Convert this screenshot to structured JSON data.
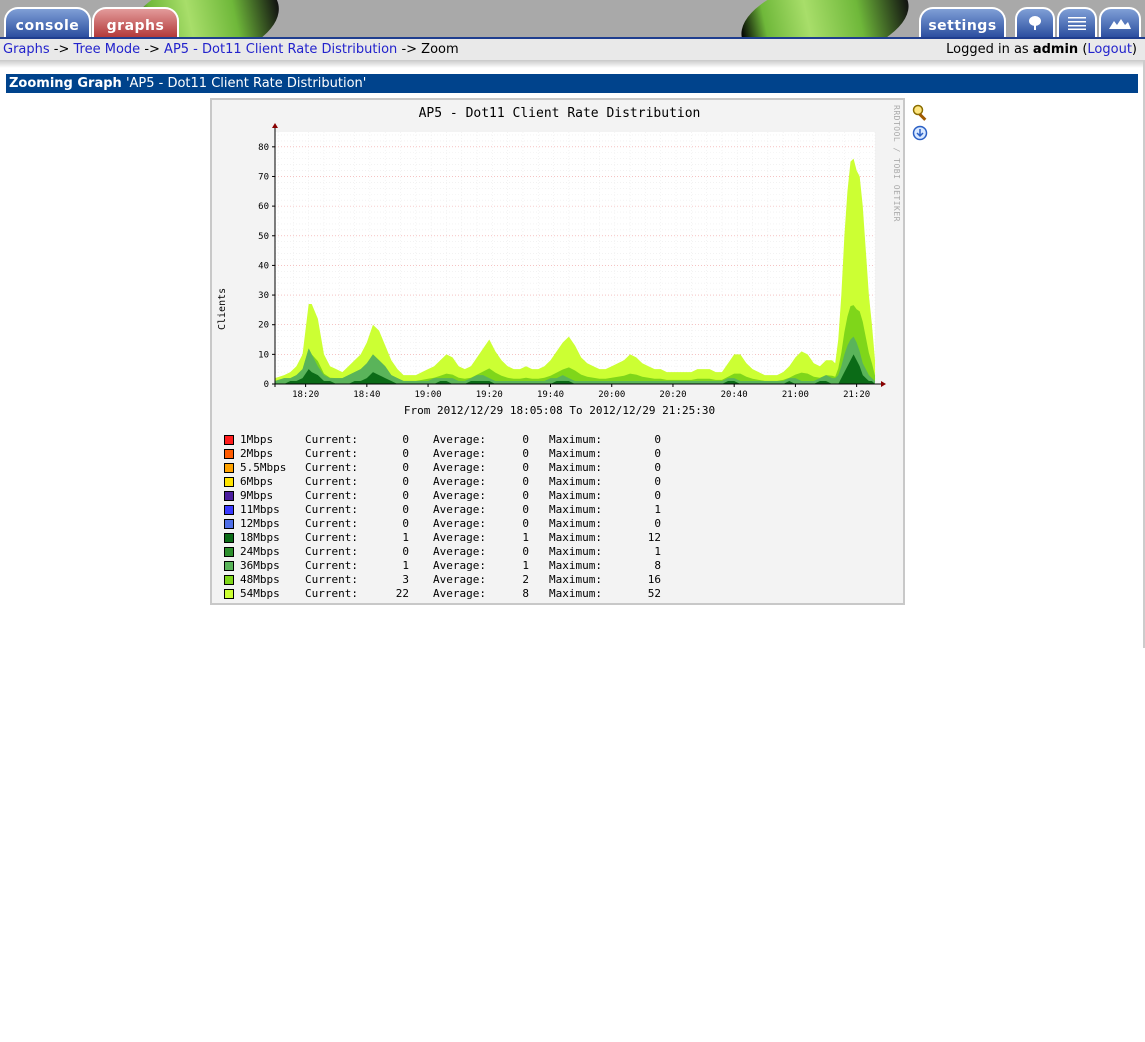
{
  "tabs": {
    "console": "console",
    "graphs": "graphs",
    "settings": "settings"
  },
  "icon_tabs": [
    "tree-icon",
    "list-icon",
    "preview-icon"
  ],
  "breadcrumb": {
    "items": [
      "Graphs",
      "Tree Mode",
      "AP5 - Dot11 Client Rate Distribution"
    ],
    "separator": "->",
    "current": "Zoom"
  },
  "login": {
    "prefix": "Logged in as",
    "user": "admin",
    "logout": "Logout"
  },
  "zoom_header": {
    "label": "Zooming Graph",
    "title": "'AP5 - Dot11 Client Rate Distribution'"
  },
  "graph": {
    "title": "AP5 - Dot11 Client Rate Distribution",
    "ylabel": "Clients",
    "watermark": "RRDTOOL / TOBI OETIKER",
    "from_to": "From 2012/12/29 18:05:08 To 2012/12/29 21:25:30"
  },
  "legend_labels": {
    "current": "Current:",
    "average": "Average:",
    "maximum": "Maximum:"
  },
  "chart_data": {
    "type": "area",
    "title": "AP5 - Dot11 Client Rate Distribution",
    "ylabel": "Clients",
    "ylim": [
      0,
      85
    ],
    "yticks": [
      0,
      10,
      20,
      30,
      40,
      50,
      60,
      70,
      80
    ],
    "xticks": [
      "18:20",
      "18:40",
      "19:00",
      "19:20",
      "19:40",
      "20:00",
      "20:20",
      "20:40",
      "21:00",
      "21:20"
    ],
    "xrange_minutes": [
      "18:05",
      "21:25"
    ],
    "grid": true,
    "series": [
      {
        "name": "1Mbps",
        "color": "#ff1d1d",
        "current": 0,
        "average": 0,
        "maximum": 0
      },
      {
        "name": "2Mbps",
        "color": "#ff5b00",
        "current": 0,
        "average": 0,
        "maximum": 0
      },
      {
        "name": "5.5Mbps",
        "color": "#ffa200",
        "current": 0,
        "average": 0,
        "maximum": 0
      },
      {
        "name": "6Mbps",
        "color": "#ffe400",
        "current": 0,
        "average": 0,
        "maximum": 0
      },
      {
        "name": "9Mbps",
        "color": "#4b1d9e",
        "current": 0,
        "average": 0,
        "maximum": 0
      },
      {
        "name": "11Mbps",
        "color": "#3b3bff",
        "current": 0,
        "average": 0,
        "maximum": 1
      },
      {
        "name": "12Mbps",
        "color": "#4f6fe8",
        "current": 0,
        "average": 0,
        "maximum": 0
      },
      {
        "name": "18Mbps",
        "color": "#0b6b17",
        "current": 1,
        "average": 1,
        "maximum": 12
      },
      {
        "name": "24Mbps",
        "color": "#2d8f2d",
        "current": 0,
        "average": 0,
        "maximum": 1
      },
      {
        "name": "36Mbps",
        "color": "#5ab45a",
        "current": 1,
        "average": 1,
        "maximum": 8
      },
      {
        "name": "48Mbps",
        "color": "#7fd61a",
        "current": 3,
        "average": 2,
        "maximum": 16
      },
      {
        "name": "54Mbps",
        "color": "#ccff33",
        "current": 22,
        "average": 8,
        "maximum": 52
      }
    ],
    "stack_profile": {
      "minutes": [
        5,
        8,
        10,
        12,
        14,
        16,
        17,
        19,
        21,
        23,
        25,
        27,
        29,
        31,
        33,
        35,
        37,
        39,
        41,
        43,
        45,
        47,
        49,
        51,
        53,
        55,
        57,
        59,
        61,
        63,
        65,
        67,
        69,
        71,
        73,
        75,
        77,
        79,
        81,
        83,
        85,
        87,
        89,
        91,
        93,
        95,
        97,
        99,
        101,
        103,
        105,
        107,
        109,
        111,
        113,
        115,
        117,
        119,
        121,
        123,
        125,
        127,
        129,
        131,
        133,
        135,
        137,
        139,
        141,
        143,
        145,
        147,
        149,
        151,
        153,
        155,
        157,
        159,
        161,
        163,
        165,
        167,
        169,
        171,
        173,
        175,
        177,
        179,
        181,
        183,
        185,
        187,
        188,
        189,
        190,
        191,
        192,
        193,
        194,
        195,
        196,
        197,
        198,
        199,
        200,
        201
      ],
      "dark": [
        0,
        0,
        1,
        1,
        2,
        5,
        4,
        3,
        1,
        1,
        0,
        0,
        0,
        1,
        1,
        2,
        4,
        3,
        2,
        1,
        0,
        0,
        0,
        0,
        0,
        0,
        0,
        1,
        1,
        0,
        0,
        0,
        1,
        1,
        1,
        1,
        0,
        0,
        0,
        0,
        0,
        0,
        0,
        0,
        0,
        0,
        1,
        1,
        1,
        0,
        0,
        0,
        0,
        0,
        0,
        0,
        0,
        0,
        0,
        0,
        0,
        0,
        0,
        0,
        0,
        0,
        0,
        0,
        0,
        0,
        0,
        0,
        0,
        0,
        1,
        1,
        0,
        0,
        0,
        0,
        0,
        0,
        0,
        0,
        1,
        0,
        0,
        0,
        0,
        1,
        1,
        0,
        0,
        0,
        2,
        4,
        6,
        8,
        10,
        8,
        6,
        3,
        2,
        1,
        1,
        0
      ],
      "mid": [
        1,
        2,
        2,
        3,
        5,
        12,
        10,
        6,
        3,
        2,
        2,
        2,
        3,
        4,
        5,
        7,
        10,
        8,
        6,
        3,
        2,
        1,
        1,
        1,
        1,
        1,
        2,
        2,
        2,
        2,
        1,
        1,
        2,
        3,
        3,
        2,
        1,
        1,
        1,
        1,
        1,
        1,
        1,
        1,
        1,
        2,
        2,
        3,
        2,
        1,
        1,
        1,
        1,
        1,
        1,
        1,
        1,
        1,
        1,
        1,
        1,
        1,
        1,
        1,
        1,
        1,
        1,
        1,
        1,
        1,
        1,
        1,
        1,
        1,
        2,
        2,
        1,
        1,
        1,
        1,
        1,
        1,
        1,
        1,
        2,
        2,
        1,
        1,
        1,
        2,
        3,
        2,
        2,
        3,
        6,
        10,
        13,
        15,
        16,
        14,
        11,
        7,
        5,
        3,
        2,
        1
      ],
      "total": [
        2,
        3,
        4,
        6,
        10,
        27,
        27,
        22,
        10,
        6,
        5,
        4,
        6,
        8,
        10,
        14,
        20,
        18,
        13,
        8,
        5,
        3,
        3,
        3,
        4,
        5,
        6,
        8,
        10,
        9,
        6,
        5,
        6,
        9,
        12,
        15,
        11,
        8,
        6,
        5,
        5,
        6,
        5,
        5,
        6,
        8,
        11,
        14,
        16,
        13,
        9,
        7,
        6,
        5,
        5,
        6,
        7,
        8,
        10,
        9,
        7,
        6,
        5,
        5,
        4,
        4,
        4,
        4,
        4,
        5,
        5,
        5,
        4,
        4,
        7,
        10,
        10,
        7,
        5,
        4,
        3,
        3,
        3,
        4,
        6,
        9,
        11,
        10,
        7,
        6,
        8,
        8,
        7,
        15,
        30,
        50,
        65,
        75,
        76,
        72,
        70,
        60,
        45,
        30,
        20,
        8
      ]
    }
  }
}
